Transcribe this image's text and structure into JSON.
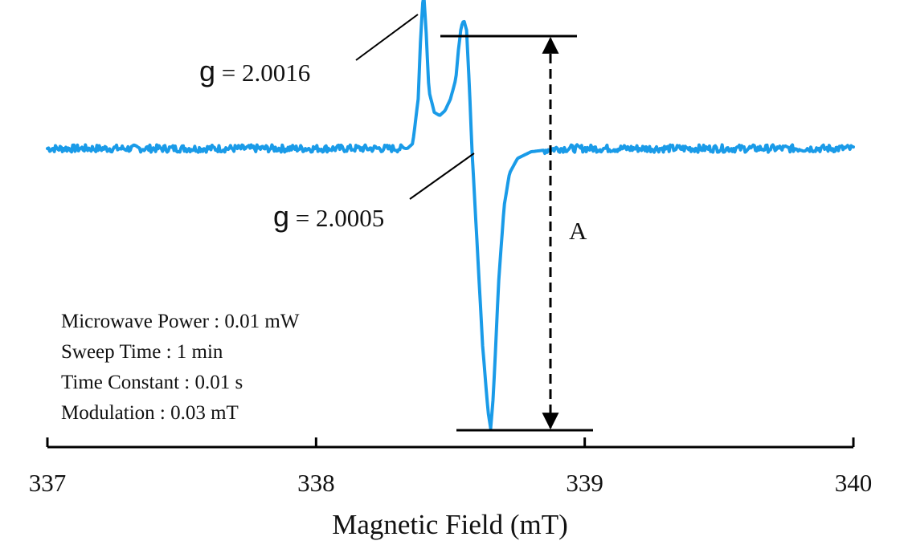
{
  "chart_data": {
    "type": "line",
    "title": "",
    "xlabel": "Magnetic Field (mT)",
    "ylabel": "",
    "xlim": [
      337,
      340
    ],
    "x_ticks": [
      "337",
      "338",
      "339",
      "340"
    ],
    "grid": false,
    "legend": "none",
    "series": [
      {
        "color": "#1a9be8",
        "x": [
          337.0,
          338.34,
          338.36,
          338.38,
          338.39,
          338.4,
          338.41,
          338.42,
          338.44,
          338.46,
          338.48,
          338.5,
          338.52,
          338.53,
          338.54,
          338.55,
          338.56,
          338.57,
          338.58,
          338.6,
          338.62,
          338.64,
          338.65,
          338.66,
          338.68,
          338.7,
          338.72,
          338.75,
          338.8,
          338.9,
          340.0
        ],
        "y": [
          0.0,
          0.0,
          0.03,
          0.3,
          0.7,
          0.96,
          0.7,
          0.35,
          0.22,
          0.2,
          0.23,
          0.3,
          0.42,
          0.6,
          0.74,
          0.78,
          0.72,
          0.4,
          0.0,
          -0.6,
          -1.2,
          -1.6,
          -1.7,
          -1.5,
          -0.8,
          -0.35,
          -0.15,
          -0.06,
          -0.02,
          0.0,
          0.0
        ]
      }
    ],
    "annotations": {
      "g1": {
        "prefix": "g",
        "text": " = 2.0016",
        "x": 338.38
      },
      "g2": {
        "prefix": "g",
        "text": " = 2.0005",
        "x": 338.59
      },
      "amplitude": {
        "label": "A"
      }
    },
    "parameters": [
      "Microwave Power : 0.01 mW",
      "Sweep Time  :  1 min",
      "Time Constant  :  0.01 s",
      "Modulation  :  0.03 mT"
    ]
  }
}
